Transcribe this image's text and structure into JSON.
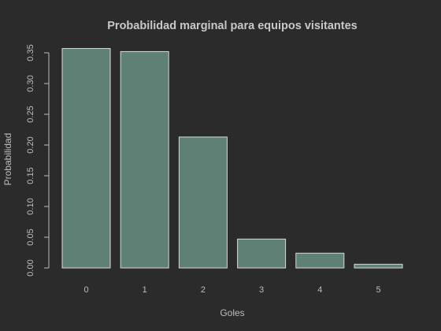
{
  "colors": {
    "background": "#2b2b2b",
    "bar_fill": "#5f8075",
    "text": "#bdbdbd"
  },
  "chart_data": {
    "type": "bar",
    "title": "Probabilidad marginal para equipos visitantes",
    "xlabel": "Goles",
    "ylabel": "Probabilidad",
    "categories": [
      "0",
      "1",
      "2",
      "3",
      "4",
      "5"
    ],
    "values": [
      0.357,
      0.352,
      0.213,
      0.047,
      0.024,
      0.006
    ],
    "ylim": [
      0,
      0.35
    ],
    "yticks": [
      "0.00",
      "0.05",
      "0.10",
      "0.15",
      "0.20",
      "0.25",
      "0.30",
      "0.35"
    ],
    "grid": false
  }
}
